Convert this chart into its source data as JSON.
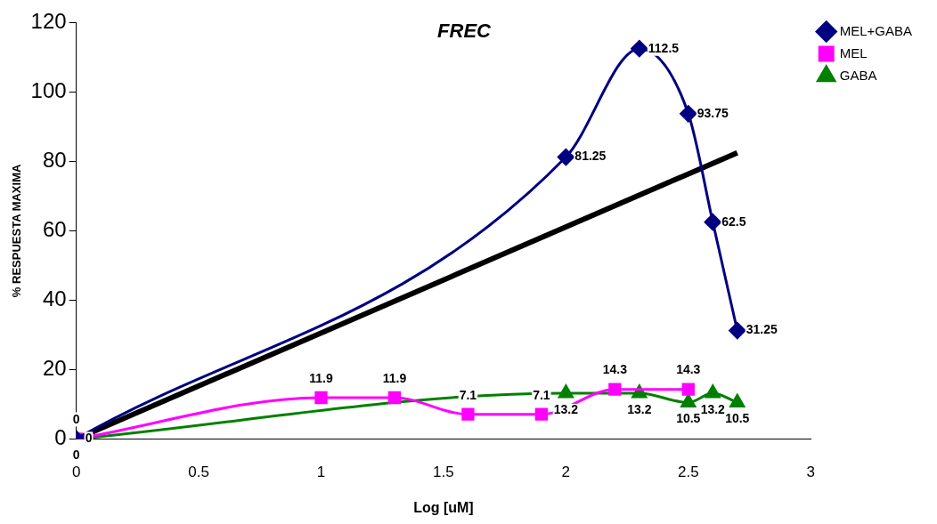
{
  "chart_data": {
    "type": "line",
    "title": "FREC",
    "xlabel": "Log [uM]",
    "ylabel": "% RESPUESTA MAXIMA",
    "xlim": [
      0,
      3
    ],
    "xticks": [
      0,
      0.5,
      1,
      1.5,
      2,
      2.5,
      3
    ],
    "ylim": [
      0,
      120
    ],
    "yticks": [
      0,
      20,
      40,
      60,
      80,
      100,
      120
    ],
    "grid": false,
    "legend": "top right",
    "series": [
      {
        "name": "MEL+GABA",
        "color": "#000080",
        "marker": "diamond",
        "x": [
          0,
          2,
          2.3,
          2.5,
          2.6,
          2.7
        ],
        "values": [
          0,
          81.25,
          112.5,
          93.75,
          62.5,
          31.25
        ],
        "value_labels": [
          "0",
          "81.25",
          "112.5",
          "93.75",
          "62.5",
          "31.25"
        ]
      },
      {
        "name": "MEL",
        "color": "#ff00ff",
        "marker": "square",
        "x": [
          0,
          1,
          1.3,
          1.6,
          1.9,
          2.2,
          2.5
        ],
        "values": [
          0,
          11.9,
          11.9,
          7.1,
          7.1,
          14.3,
          14.3
        ],
        "value_labels": [
          "0",
          "11.9",
          "11.9",
          "7.1",
          "7.1",
          "14.3",
          "14.3"
        ]
      },
      {
        "name": "GABA",
        "color": "#008000",
        "marker": "triangle",
        "x": [
          0,
          2,
          2.3,
          2.5,
          2.6,
          2.7
        ],
        "values": [
          0,
          13.2,
          13.2,
          10.5,
          13.2,
          10.5
        ],
        "value_labels": [
          "0",
          "13.2",
          "13.2",
          "10.5",
          "13.2",
          "10.5"
        ]
      },
      {
        "color": "#000000",
        "marker": "none",
        "x": [
          0,
          2.7
        ],
        "values": [
          0,
          82.5
        ]
      }
    ]
  }
}
